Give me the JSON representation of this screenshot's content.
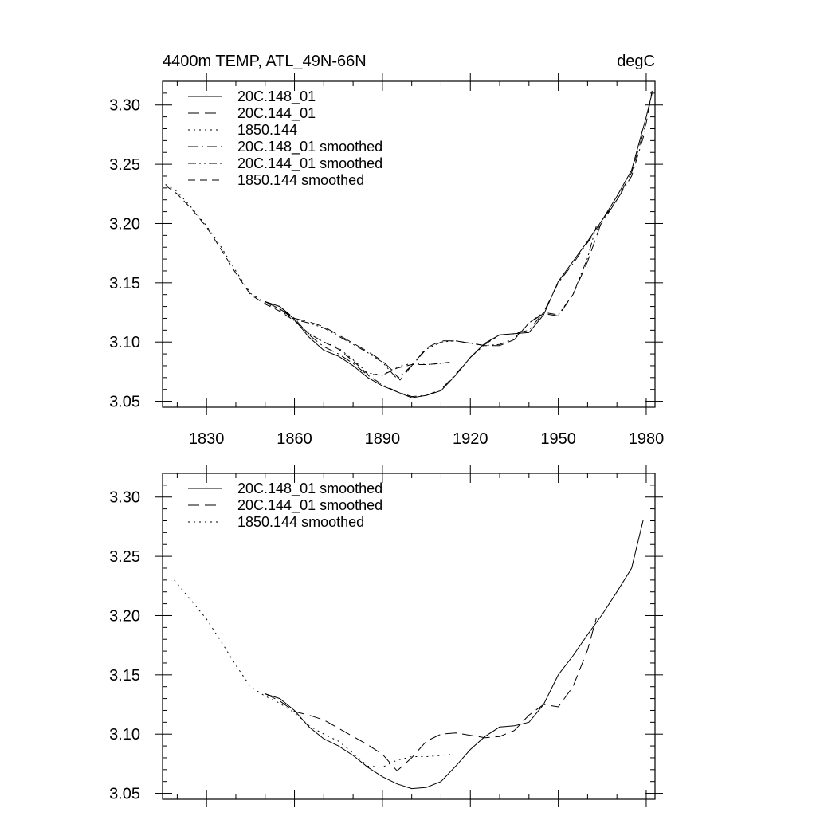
{
  "chart_data": [
    {
      "type": "line",
      "title": "4400m TEMP, ATL_49N-66N",
      "units": "degC",
      "xlim": [
        1815,
        1983
      ],
      "ylim": [
        3.045,
        3.32
      ],
      "x_ticks": [
        1830,
        1860,
        1890,
        1920,
        1950,
        1980
      ],
      "x_tick_labels": [
        "1830",
        "1860",
        "1890",
        "1920",
        "1950",
        "1980"
      ],
      "y_ticks": [
        3.05,
        3.1,
        3.15,
        3.2,
        3.25,
        3.3
      ],
      "y_tick_labels": [
        "3.05",
        "3.10",
        "3.15",
        "3.20",
        "3.25",
        "3.30"
      ],
      "legend_position": "top-left",
      "series": [
        {
          "name": "20C.148_01",
          "style": "solid",
          "x": [
            1850,
            1855,
            1860,
            1865,
            1870,
            1875,
            1880,
            1885,
            1890,
            1895,
            1900,
            1905,
            1910,
            1915,
            1920,
            1925,
            1930,
            1935,
            1940,
            1945,
            1950,
            1955,
            1960,
            1965,
            1970,
            1975,
            1980,
            1982
          ],
          "y": [
            3.134,
            3.13,
            3.119,
            3.104,
            3.093,
            3.088,
            3.08,
            3.07,
            3.063,
            3.058,
            3.053,
            3.055,
            3.059,
            3.072,
            3.087,
            3.099,
            3.106,
            3.107,
            3.108,
            3.123,
            3.151,
            3.168,
            3.185,
            3.203,
            3.223,
            3.245,
            3.29,
            3.31
          ]
        },
        {
          "name": "20C.144_01",
          "style": "dashed",
          "x": [
            1850,
            1855,
            1860,
            1865,
            1870,
            1875,
            1880,
            1885,
            1890,
            1893,
            1896,
            1900,
            1905,
            1910,
            1915,
            1920,
            1925,
            1930,
            1935,
            1940,
            1945,
            1950,
            1955,
            1960,
            1965,
            1970,
            1975,
            1980,
            1982
          ],
          "y": [
            3.134,
            3.128,
            3.12,
            3.117,
            3.113,
            3.106,
            3.099,
            3.092,
            3.084,
            3.077,
            3.068,
            3.08,
            3.095,
            3.101,
            3.101,
            3.099,
            3.097,
            3.097,
            3.102,
            3.116,
            3.124,
            3.122,
            3.14,
            3.168,
            3.203,
            3.22,
            3.243,
            3.285,
            3.312
          ]
        },
        {
          "name": "1850.144",
          "style": "dotted",
          "x": [
            1816,
            1820,
            1825,
            1830,
            1835,
            1840,
            1845,
            1850,
            1855,
            1860,
            1865,
            1870,
            1875,
            1880,
            1885,
            1890,
            1895,
            1900,
            1905,
            1910,
            1913
          ],
          "y": [
            3.233,
            3.227,
            3.213,
            3.198,
            3.18,
            3.16,
            3.141,
            3.133,
            3.127,
            3.118,
            3.107,
            3.1,
            3.095,
            3.085,
            3.074,
            3.072,
            3.079,
            3.082,
            3.081,
            3.082,
            3.083
          ]
        },
        {
          "name": "20C.148_01 smoothed",
          "style": "dash-dot",
          "x": [
            1850,
            1855,
            1860,
            1865,
            1870,
            1875,
            1880,
            1885,
            1890,
            1895,
            1900,
            1905,
            1910,
            1915,
            1920,
            1925,
            1930,
            1935,
            1940,
            1945,
            1950,
            1955,
            1960,
            1965,
            1970,
            1975,
            1980
          ],
          "y": [
            3.134,
            3.13,
            3.12,
            3.106,
            3.096,
            3.09,
            3.082,
            3.072,
            3.064,
            3.058,
            3.054,
            3.055,
            3.06,
            3.073,
            3.087,
            3.098,
            3.106,
            3.107,
            3.11,
            3.125,
            3.15,
            3.166,
            3.184,
            3.201,
            3.22,
            3.24,
            3.281
          ]
        },
        {
          "name": "20C.144_01 smoothed",
          "style": "dash-dot-dot",
          "x": [
            1850,
            1855,
            1860,
            1865,
            1870,
            1875,
            1880,
            1885,
            1890,
            1895,
            1900,
            1905,
            1910,
            1915,
            1920,
            1925,
            1930,
            1935,
            1940,
            1945,
            1950,
            1955,
            1960,
            1963
          ],
          "y": [
            3.134,
            3.128,
            3.119,
            3.116,
            3.112,
            3.105,
            3.098,
            3.091,
            3.083,
            3.069,
            3.08,
            3.094,
            3.1,
            3.101,
            3.099,
            3.097,
            3.098,
            3.103,
            3.116,
            3.125,
            3.123,
            3.14,
            3.171,
            3.198
          ]
        },
        {
          "name": "1850.144 smoothed",
          "style": "long-dash",
          "x": [
            1816,
            1820,
            1825,
            1830,
            1835,
            1840,
            1845,
            1850,
            1855,
            1860,
            1865,
            1870,
            1875,
            1880,
            1885,
            1890,
            1895,
            1900,
            1905,
            1910,
            1913
          ],
          "y": [
            3.232,
            3.225,
            3.212,
            3.197,
            3.178,
            3.158,
            3.14,
            3.132,
            3.126,
            3.118,
            3.107,
            3.1,
            3.094,
            3.084,
            3.073,
            3.072,
            3.078,
            3.081,
            3.081,
            3.082,
            3.083
          ]
        }
      ]
    },
    {
      "type": "line",
      "title": "",
      "xlim": [
        1815,
        1983
      ],
      "ylim": [
        3.045,
        3.32
      ],
      "x_ticks": [
        1830,
        1860,
        1890,
        1920,
        1950,
        1980
      ],
      "y_ticks": [
        3.05,
        3.1,
        3.15,
        3.2,
        3.25,
        3.3
      ],
      "y_tick_labels": [
        "3.05",
        "3.10",
        "3.15",
        "3.20",
        "3.25",
        "3.30"
      ],
      "legend_position": "top-left",
      "series": [
        {
          "name": "20C.148_01 smoothed",
          "style": "solid",
          "x": [
            1850,
            1855,
            1860,
            1865,
            1870,
            1875,
            1880,
            1885,
            1890,
            1895,
            1900,
            1905,
            1910,
            1915,
            1920,
            1925,
            1930,
            1935,
            1940,
            1945,
            1950,
            1955,
            1960,
            1965,
            1970,
            1975,
            1979
          ],
          "y": [
            3.134,
            3.13,
            3.12,
            3.106,
            3.096,
            3.09,
            3.082,
            3.072,
            3.064,
            3.058,
            3.054,
            3.055,
            3.06,
            3.073,
            3.087,
            3.098,
            3.106,
            3.107,
            3.11,
            3.125,
            3.15,
            3.166,
            3.184,
            3.201,
            3.22,
            3.24,
            3.281
          ]
        },
        {
          "name": "20C.144_01 smoothed",
          "style": "dashed",
          "x": [
            1850,
            1855,
            1860,
            1865,
            1870,
            1875,
            1880,
            1885,
            1890,
            1895,
            1900,
            1905,
            1910,
            1915,
            1920,
            1925,
            1930,
            1935,
            1940,
            1945,
            1950,
            1955,
            1960,
            1963
          ],
          "y": [
            3.134,
            3.128,
            3.119,
            3.116,
            3.112,
            3.105,
            3.098,
            3.091,
            3.083,
            3.069,
            3.08,
            3.094,
            3.1,
            3.101,
            3.099,
            3.097,
            3.098,
            3.103,
            3.116,
            3.125,
            3.123,
            3.14,
            3.171,
            3.198
          ]
        },
        {
          "name": "1850.144 smoothed",
          "style": "dotted",
          "x": [
            1819,
            1825,
            1830,
            1835,
            1840,
            1845,
            1850,
            1855,
            1860,
            1865,
            1870,
            1875,
            1880,
            1885,
            1890,
            1895,
            1900,
            1905,
            1910,
            1913
          ],
          "y": [
            3.23,
            3.212,
            3.197,
            3.178,
            3.158,
            3.14,
            3.132,
            3.126,
            3.118,
            3.107,
            3.1,
            3.094,
            3.084,
            3.073,
            3.072,
            3.078,
            3.081,
            3.081,
            3.082,
            3.083
          ]
        }
      ]
    }
  ]
}
